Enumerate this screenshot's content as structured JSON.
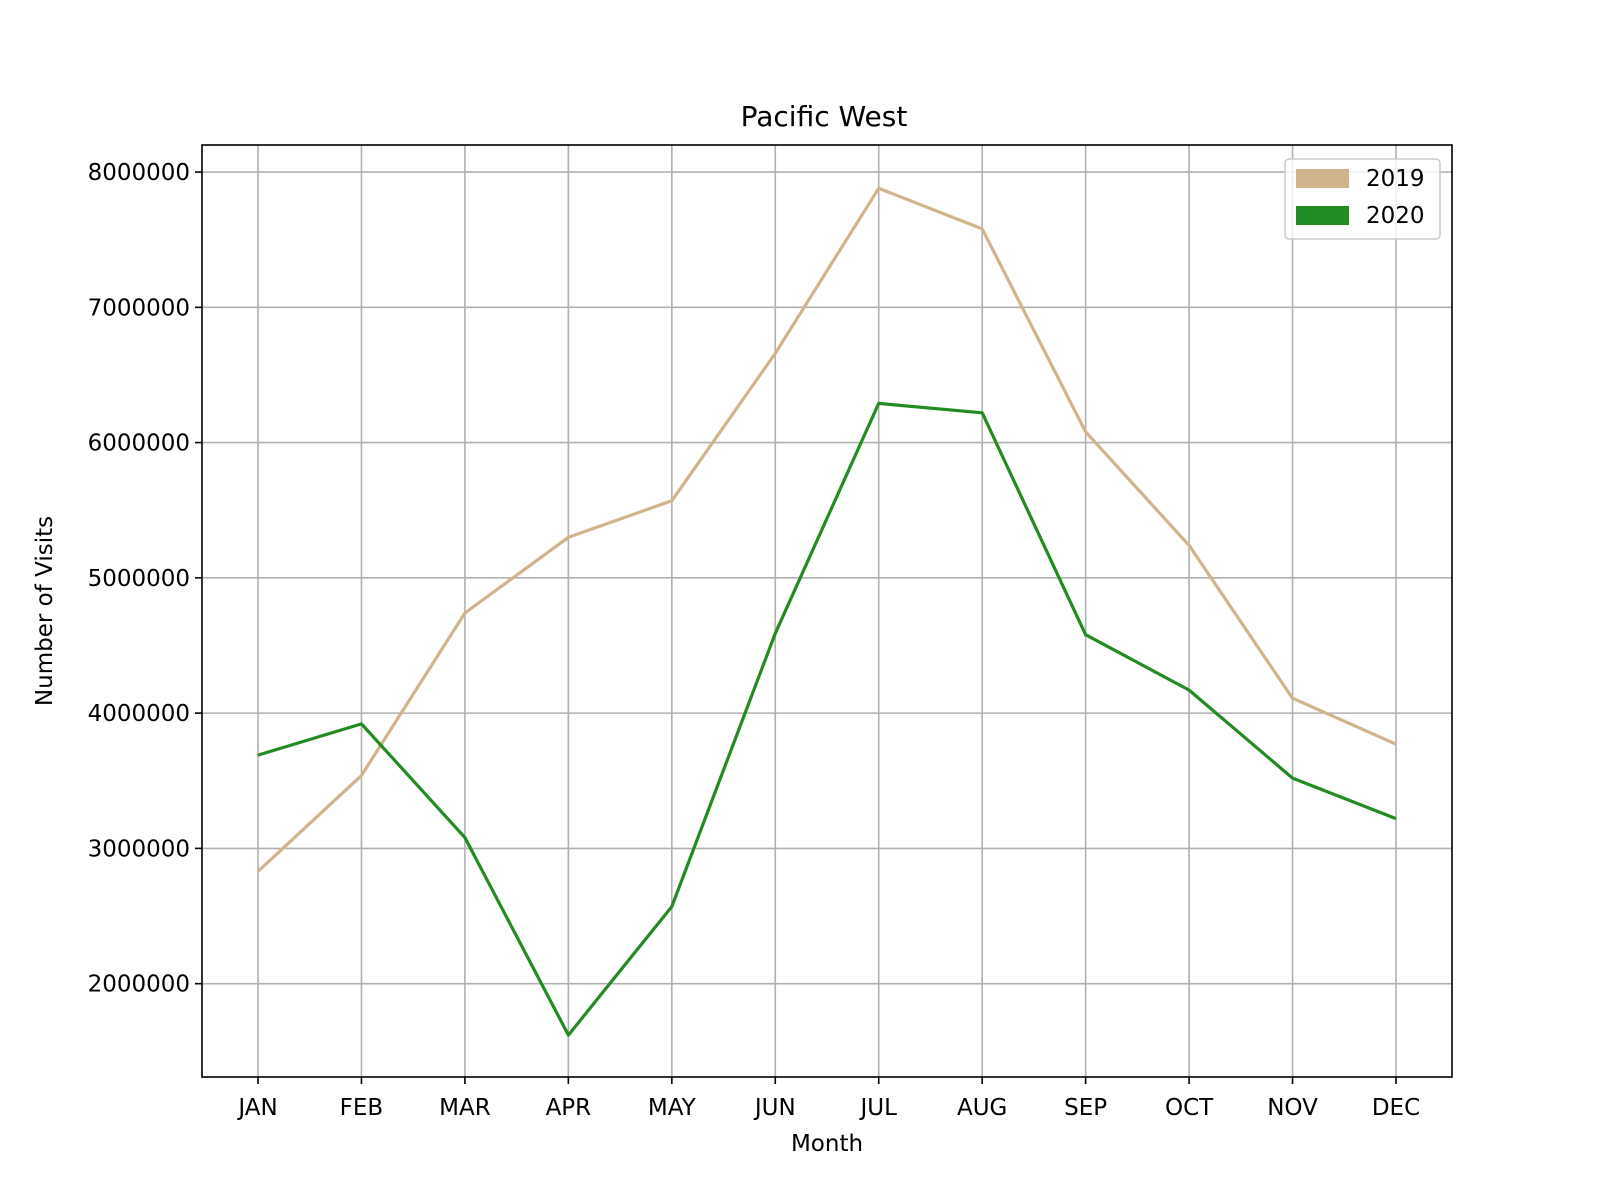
{
  "chart_data": {
    "type": "line",
    "title": "Pacific West",
    "xlabel": "Month",
    "ylabel": "Number of Visits",
    "categories": [
      "JAN",
      "FEB",
      "MAR",
      "APR",
      "MAY",
      "JUN",
      "JUL",
      "AUG",
      "SEP",
      "OCT",
      "NOV",
      "DEC"
    ],
    "series": [
      {
        "name": "2019",
        "color": "#d2b48c",
        "values": [
          2830000,
          3540000,
          4740000,
          5300000,
          5570000,
          6660000,
          7880000,
          7580000,
          6080000,
          5240000,
          4110000,
          3770000
        ]
      },
      {
        "name": "2020",
        "color": "#228b22",
        "values": [
          3690000,
          3920000,
          3080000,
          1620000,
          2570000,
          4590000,
          6290000,
          6220000,
          4580000,
          4170000,
          3520000,
          3220000
        ]
      }
    ],
    "yticks": [
      2000000,
      3000000,
      4000000,
      5000000,
      6000000,
      7000000,
      8000000
    ],
    "ylim": [
      1310000,
      8200000
    ],
    "grid": true,
    "legend_position": "upper right"
  }
}
